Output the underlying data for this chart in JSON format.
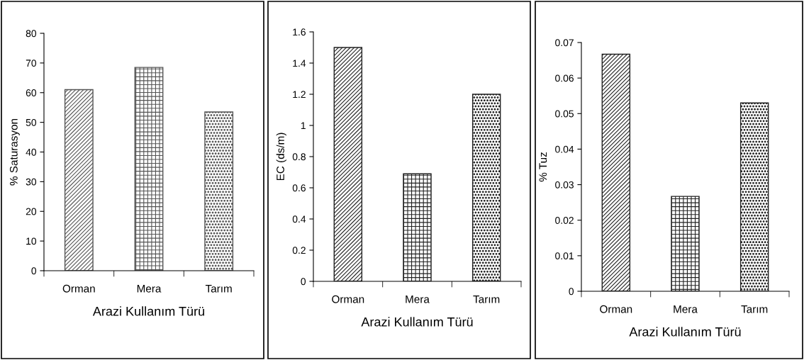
{
  "chart_data": [
    {
      "type": "bar",
      "categories": [
        "Orman",
        "Mera",
        "Tarım"
      ],
      "values": [
        61,
        68.5,
        53.5
      ],
      "colors": [
        "#555555",
        "#555555",
        "#555555"
      ],
      "xlabel": "Arazi Kullanım Türü",
      "ylabel": "% Saturasyon",
      "ylim": [
        0,
        80
      ],
      "yticks": [
        0,
        10,
        20,
        30,
        40,
        50,
        60,
        70,
        80
      ],
      "grid": false
    },
    {
      "type": "bar",
      "categories": [
        "Orman",
        "Mera",
        "Tarım"
      ],
      "values": [
        1.5,
        0.69,
        1.2
      ],
      "colors": [
        "#222222",
        "#222222",
        "#222222"
      ],
      "xlabel": "Arazi Kullanım Türü",
      "ylabel": "EC (ds/m)",
      "ylim": [
        0,
        1.6
      ],
      "yticks": [
        0,
        0.2,
        0.4,
        0.6,
        0.8,
        1,
        1.2,
        1.4,
        1.6
      ],
      "grid": false
    },
    {
      "type": "bar",
      "categories": [
        "Orman",
        "Mera",
        "Tarım"
      ],
      "values": [
        0.0667,
        0.0267,
        0.053
      ],
      "colors": [
        "#222222",
        "#222222",
        "#222222"
      ],
      "xlabel": "Arazi Kullanım Türü",
      "ylabel": "% Tuz",
      "ylim": [
        0,
        0.07
      ],
      "yticks": [
        0,
        0.01,
        0.02,
        0.03,
        0.04,
        0.05,
        0.06,
        0.07
      ],
      "grid": false
    }
  ]
}
